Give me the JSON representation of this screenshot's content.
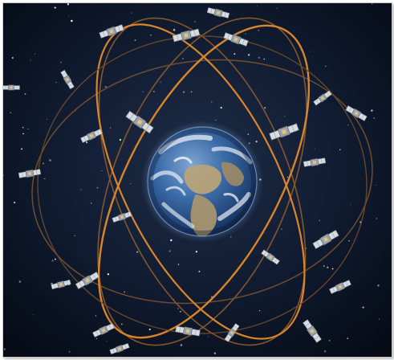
{
  "image": {
    "subject": "satellite-constellation-around-earth",
    "colors": {
      "space_center": "#1e2d48",
      "space_edge": "#060b16",
      "orbit_primary": "#d9852b",
      "orbit_secondary": "#8a5a2c",
      "earth_ocean": "#2f5f9a",
      "earth_land": "#b8a27a",
      "earth_cloud": "#e8eef5",
      "satellite_panel": "#d8dde4",
      "satellite_body": "#9aa3ad"
    },
    "icons": [
      "earth-icon",
      "satellite-icon",
      "star-icon"
    ]
  }
}
